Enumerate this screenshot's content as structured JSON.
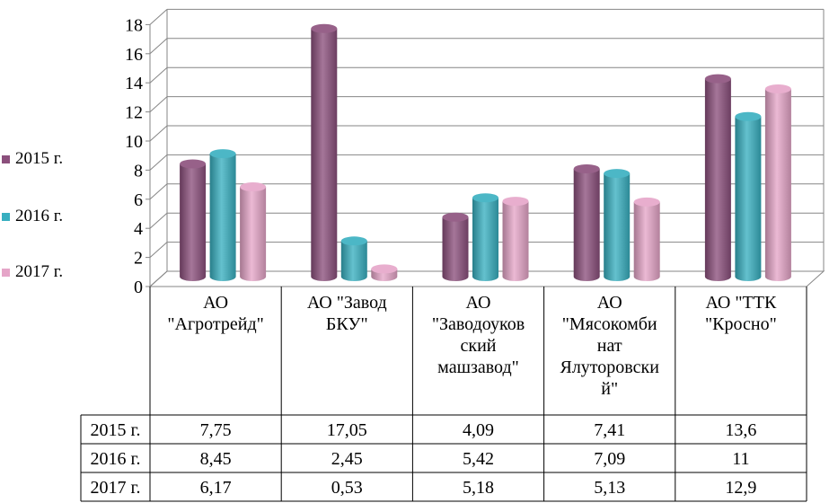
{
  "chart_data": {
    "type": "bar",
    "title": "",
    "xlabel": "",
    "ylabel": "",
    "ylim": [
      0,
      18
    ],
    "yticks": [
      "0",
      "2",
      "4",
      "6",
      "8",
      "10",
      "12",
      "14",
      "16",
      "18"
    ],
    "grid": true,
    "legend_position": "left",
    "categories": [
      [
        "АО",
        "\"Агротрейд\""
      ],
      [
        "АО \"Завод",
        "БКУ\""
      ],
      [
        "АО",
        "\"Заводоуков",
        "ский",
        "машзавод\""
      ],
      [
        "АО",
        "\"Мясокомби",
        "нат",
        "Ялуторовски",
        "й\""
      ],
      [
        "АО \"ТТК",
        "\"Кросно\""
      ]
    ],
    "series": [
      {
        "name": "2015 г.",
        "color": "#8B4F7C",
        "values": [
          7.75,
          17.05,
          4.09,
          7.41,
          13.6
        ],
        "labels": [
          "7,75",
          "17,05",
          "4,09",
          "7,41",
          "13,6"
        ]
      },
      {
        "name": "2016 г.",
        "color": "#38AFC0",
        "values": [
          8.45,
          2.45,
          5.42,
          7.09,
          11
        ],
        "labels": [
          "8,45",
          "2,45",
          "5,42",
          "7,09",
          "11"
        ]
      },
      {
        "name": "2017 г.",
        "color": "#E5A5C8",
        "values": [
          6.17,
          0.53,
          5.18,
          5.13,
          12.9
        ],
        "labels": [
          "6,17",
          "0,53",
          "5,18",
          "5,13",
          "12,9"
        ]
      }
    ]
  }
}
